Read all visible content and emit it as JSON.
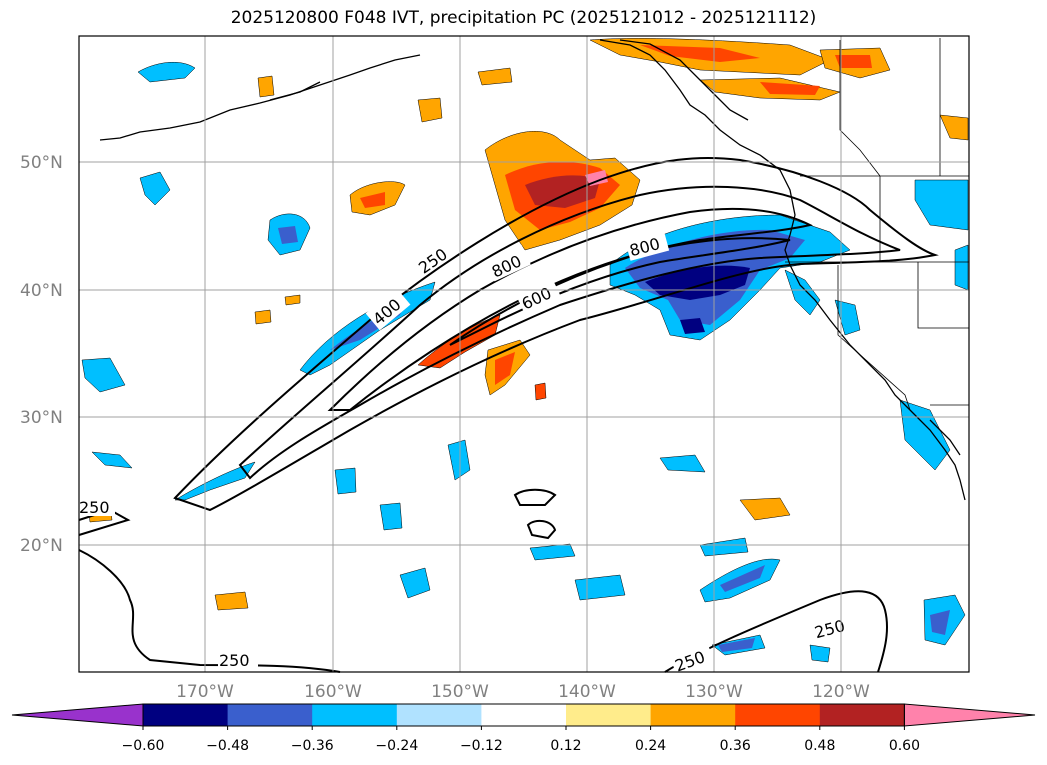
{
  "title": "2025120800 F048 IVT, precipitation PC (2025121012 - 2025121112)",
  "lat_labels": [
    "50°N",
    "40°N",
    "30°N",
    "20°N"
  ],
  "lon_labels": [
    "170°W",
    "160°W",
    "150°W",
    "140°W",
    "130°W",
    "120°W"
  ],
  "colorbar": {
    "ticks": [
      "−0.60",
      "−0.48",
      "−0.36",
      "−0.24",
      "−0.12",
      "0.12",
      "0.24",
      "0.36",
      "0.48",
      "0.60"
    ],
    "colors": [
      "#9932cc",
      "#000080",
      "#3a5fcd",
      "#00bfff",
      "#b0e2ff",
      "#ffffff",
      "#ffec8b",
      "#ffa500",
      "#ff4500",
      "#b22222",
      "#ff82ab"
    ]
  },
  "contour_labels": [
    "250",
    "400",
    "800",
    "800",
    "600",
    "250",
    "250",
    "250",
    "250"
  ]
}
